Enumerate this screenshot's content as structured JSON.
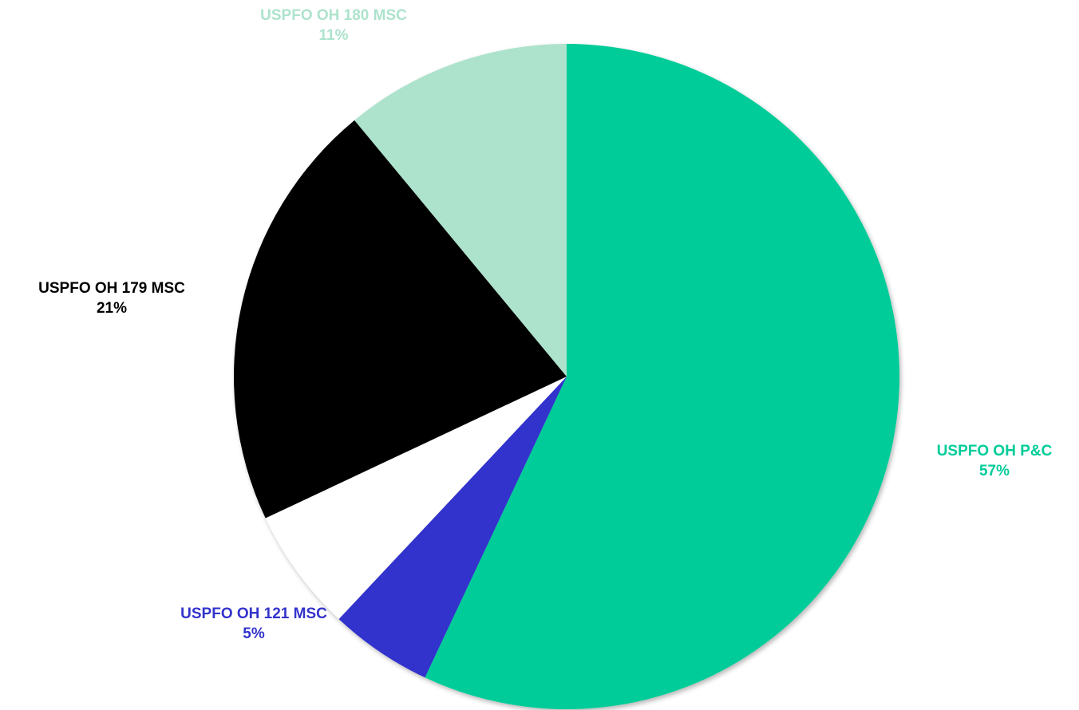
{
  "chart_data": {
    "type": "pie",
    "title": "",
    "start_angle_deg": 0,
    "direction": "clockwise",
    "slices": [
      {
        "name": "USPFO OH P&C",
        "value": 57,
        "label": "USPFO OH P&C",
        "pct_label": "57%",
        "color": "#00cc99",
        "label_color": "#00cc99"
      },
      {
        "name": "USPFO OH 121 MSC",
        "value": 5,
        "label": "USPFO OH 121 MSC",
        "pct_label": "5%",
        "color": "#3333cc",
        "label_color": "#3333cc"
      },
      {
        "name": "",
        "value": 6,
        "label": "",
        "pct_label": "",
        "color": "#ffffff",
        "label_color": "#000000"
      },
      {
        "name": "USPFO OH 179 MSC",
        "value": 21,
        "label": "USPFO OH 179 MSC",
        "pct_label": "21%",
        "color": "#000000",
        "label_color": "#000000"
      },
      {
        "name": "USPFO OH 180 MSC",
        "value": 11,
        "label": "USPFO OH 180 MSC",
        "pct_label": "11%",
        "color": "#ade3cc",
        "label_color": "#ade3cc"
      }
    ]
  }
}
